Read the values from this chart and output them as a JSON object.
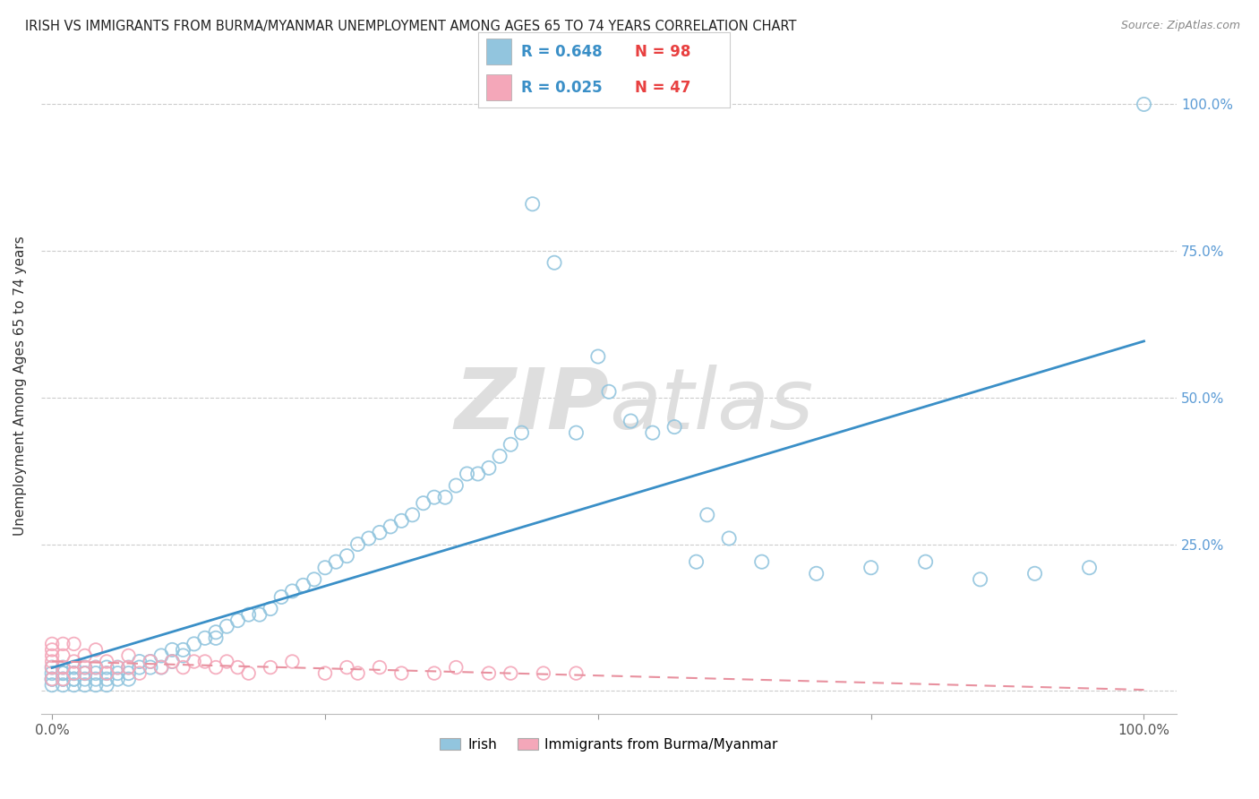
{
  "title": "IRISH VS IMMIGRANTS FROM BURMA/MYANMAR UNEMPLOYMENT AMONG AGES 65 TO 74 YEARS CORRELATION CHART",
  "source": "Source: ZipAtlas.com",
  "ylabel": "Unemployment Among Ages 65 to 74 years",
  "irish_R": 0.648,
  "irish_N": 98,
  "burma_R": 0.025,
  "burma_N": 47,
  "irish_color": "#92C5DE",
  "burma_color": "#F4A7B9",
  "irish_line_color": "#3A8FC7",
  "burma_line_color": "#E8919F",
  "background_color": "#FFFFFF",
  "watermark_color": "#DDDDDD",
  "right_ytick_labels": [
    "25.0%",
    "50.0%",
    "75.0%",
    "100.0%"
  ],
  "right_ytick_vals": [
    0.25,
    0.5,
    0.75,
    1.0
  ],
  "xlim": [
    -0.01,
    1.03
  ],
  "ylim": [
    -0.04,
    1.08
  ],
  "irish_x": [
    0.0,
    0.0,
    0.0,
    0.0,
    0.0,
    0.01,
    0.01,
    0.01,
    0.01,
    0.01,
    0.01,
    0.02,
    0.02,
    0.02,
    0.02,
    0.02,
    0.02,
    0.03,
    0.03,
    0.03,
    0.03,
    0.03,
    0.04,
    0.04,
    0.04,
    0.04,
    0.05,
    0.05,
    0.05,
    0.05,
    0.06,
    0.06,
    0.06,
    0.07,
    0.07,
    0.07,
    0.08,
    0.08,
    0.09,
    0.09,
    0.1,
    0.1,
    0.11,
    0.11,
    0.12,
    0.12,
    0.13,
    0.14,
    0.15,
    0.15,
    0.16,
    0.17,
    0.18,
    0.19,
    0.2,
    0.21,
    0.22,
    0.23,
    0.24,
    0.25,
    0.26,
    0.27,
    0.28,
    0.29,
    0.3,
    0.31,
    0.32,
    0.33,
    0.34,
    0.35,
    0.36,
    0.37,
    0.38,
    0.39,
    0.4,
    0.41,
    0.42,
    0.43,
    0.44,
    0.46,
    0.48,
    0.5,
    0.51,
    0.53,
    0.55,
    0.57,
    0.59,
    0.6,
    0.62,
    0.65,
    0.7,
    0.75,
    0.8,
    0.85,
    0.9,
    0.95,
    1.0
  ],
  "irish_y": [
    0.01,
    0.02,
    0.03,
    0.02,
    0.04,
    0.02,
    0.03,
    0.01,
    0.04,
    0.02,
    0.03,
    0.03,
    0.02,
    0.04,
    0.01,
    0.03,
    0.02,
    0.03,
    0.04,
    0.02,
    0.01,
    0.03,
    0.04,
    0.02,
    0.03,
    0.01,
    0.03,
    0.04,
    0.02,
    0.01,
    0.03,
    0.02,
    0.04,
    0.03,
    0.04,
    0.02,
    0.04,
    0.05,
    0.04,
    0.05,
    0.04,
    0.06,
    0.05,
    0.07,
    0.06,
    0.07,
    0.08,
    0.09,
    0.09,
    0.1,
    0.11,
    0.12,
    0.13,
    0.13,
    0.14,
    0.16,
    0.17,
    0.18,
    0.19,
    0.21,
    0.22,
    0.23,
    0.25,
    0.26,
    0.27,
    0.28,
    0.29,
    0.3,
    0.32,
    0.33,
    0.33,
    0.35,
    0.37,
    0.37,
    0.38,
    0.4,
    0.42,
    0.44,
    0.83,
    0.73,
    0.44,
    0.57,
    0.51,
    0.46,
    0.44,
    0.45,
    0.22,
    0.3,
    0.26,
    0.22,
    0.2,
    0.21,
    0.22,
    0.19,
    0.2,
    0.21,
    1.0
  ],
  "burma_x": [
    0.0,
    0.0,
    0.0,
    0.0,
    0.0,
    0.0,
    0.01,
    0.01,
    0.01,
    0.01,
    0.02,
    0.02,
    0.02,
    0.03,
    0.03,
    0.03,
    0.04,
    0.04,
    0.05,
    0.05,
    0.06,
    0.07,
    0.07,
    0.08,
    0.09,
    0.1,
    0.11,
    0.12,
    0.13,
    0.14,
    0.15,
    0.16,
    0.17,
    0.18,
    0.2,
    0.22,
    0.25,
    0.27,
    0.28,
    0.3,
    0.32,
    0.35,
    0.37,
    0.4,
    0.42,
    0.45,
    0.48
  ],
  "burma_y": [
    0.02,
    0.04,
    0.07,
    0.06,
    0.08,
    0.05,
    0.02,
    0.04,
    0.06,
    0.08,
    0.03,
    0.05,
    0.08,
    0.03,
    0.06,
    0.04,
    0.04,
    0.07,
    0.03,
    0.05,
    0.04,
    0.04,
    0.06,
    0.03,
    0.05,
    0.04,
    0.05,
    0.04,
    0.05,
    0.05,
    0.04,
    0.05,
    0.04,
    0.03,
    0.04,
    0.05,
    0.03,
    0.04,
    0.03,
    0.04,
    0.03,
    0.03,
    0.04,
    0.03,
    0.03,
    0.03,
    0.03
  ]
}
